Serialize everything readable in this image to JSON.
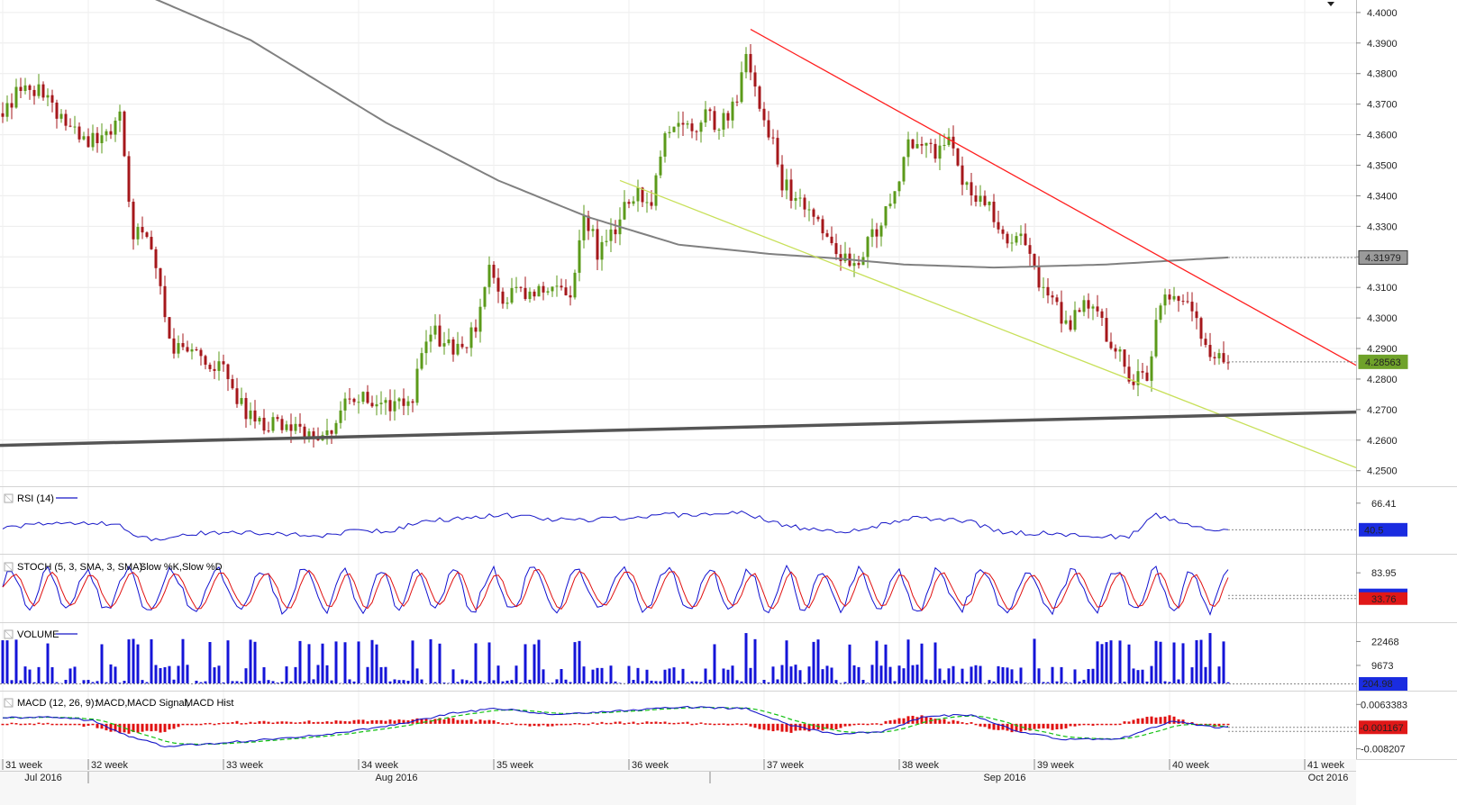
{
  "chart_data": [
    {
      "type": "candlestick",
      "panel": "price",
      "y_ticks": [
        "4.4000",
        "4.3900",
        "4.3800",
        "4.3700",
        "4.3600",
        "4.3500",
        "4.3400",
        "4.3300",
        "4.3200",
        "4.3100",
        "4.3000",
        "4.2900",
        "4.2800",
        "4.2700",
        "4.2600",
        "4.2500"
      ],
      "ylim": [
        4.2455,
        4.4035
      ],
      "colors": {
        "up": "#5b9a1a",
        "down": "#a5171b",
        "ma": "#808080",
        "resistance": "#ff2020",
        "channel": "#c8e05a",
        "support": "#555555"
      },
      "moving_average_label": "4.31979",
      "last_price_label": "4.28563",
      "anchors": [
        {
          "i": 0,
          "v": 4.365
        },
        {
          "i": 5,
          "v": 4.378
        },
        {
          "i": 10,
          "v": 4.372
        },
        {
          "i": 15,
          "v": 4.362
        },
        {
          "i": 20,
          "v": 4.358
        },
        {
          "i": 26,
          "v": 4.365
        },
        {
          "i": 29,
          "v": 4.328
        },
        {
          "i": 33,
          "v": 4.325
        },
        {
          "i": 37,
          "v": 4.292
        },
        {
          "i": 42,
          "v": 4.288
        },
        {
          "i": 48,
          "v": 4.285
        },
        {
          "i": 54,
          "v": 4.268
        },
        {
          "i": 60,
          "v": 4.265
        },
        {
          "i": 66,
          "v": 4.263
        },
        {
          "i": 72,
          "v": 4.262
        },
        {
          "i": 78,
          "v": 4.275
        },
        {
          "i": 82,
          "v": 4.273
        },
        {
          "i": 86,
          "v": 4.272
        },
        {
          "i": 90,
          "v": 4.27
        },
        {
          "i": 95,
          "v": 4.296
        },
        {
          "i": 100,
          "v": 4.29
        },
        {
          "i": 105,
          "v": 4.295
        },
        {
          "i": 108,
          "v": 4.318
        },
        {
          "i": 111,
          "v": 4.306
        },
        {
          "i": 114,
          "v": 4.311
        },
        {
          "i": 117,
          "v": 4.307
        },
        {
          "i": 121,
          "v": 4.31
        },
        {
          "i": 126,
          "v": 4.306
        },
        {
          "i": 129,
          "v": 4.336
        },
        {
          "i": 132,
          "v": 4.322
        },
        {
          "i": 135,
          "v": 4.327
        },
        {
          "i": 138,
          "v": 4.336
        },
        {
          "i": 141,
          "v": 4.341
        },
        {
          "i": 144,
          "v": 4.338
        },
        {
          "i": 147,
          "v": 4.358
        },
        {
          "i": 150,
          "v": 4.366
        },
        {
          "i": 153,
          "v": 4.361
        },
        {
          "i": 156,
          "v": 4.368
        },
        {
          "i": 159,
          "v": 4.362
        },
        {
          "i": 163,
          "v": 4.372
        },
        {
          "i": 165,
          "v": 4.389
        },
        {
          "i": 168,
          "v": 4.371
        },
        {
          "i": 170,
          "v": 4.362
        },
        {
          "i": 173,
          "v": 4.344
        },
        {
          "i": 177,
          "v": 4.338
        },
        {
          "i": 181,
          "v": 4.33
        },
        {
          "i": 185,
          "v": 4.322
        },
        {
          "i": 189,
          "v": 4.318
        },
        {
          "i": 193,
          "v": 4.327
        },
        {
          "i": 197,
          "v": 4.337
        },
        {
          "i": 201,
          "v": 4.356
        },
        {
          "i": 204,
          "v": 4.358
        },
        {
          "i": 207,
          "v": 4.355
        },
        {
          "i": 210,
          "v": 4.357
        },
        {
          "i": 213,
          "v": 4.346
        },
        {
          "i": 216,
          "v": 4.339
        },
        {
          "i": 219,
          "v": 4.336
        },
        {
          "i": 222,
          "v": 4.325
        },
        {
          "i": 225,
          "v": 4.326
        },
        {
          "i": 228,
          "v": 4.323
        },
        {
          "i": 230,
          "v": 4.311
        },
        {
          "i": 233,
          "v": 4.307
        },
        {
          "i": 236,
          "v": 4.297
        },
        {
          "i": 239,
          "v": 4.302
        },
        {
          "i": 242,
          "v": 4.306
        },
        {
          "i": 245,
          "v": 4.294
        },
        {
          "i": 248,
          "v": 4.288
        },
        {
          "i": 251,
          "v": 4.279
        },
        {
          "i": 254,
          "v": 4.282
        },
        {
          "i": 257,
          "v": 4.304
        },
        {
          "i": 260,
          "v": 4.308
        },
        {
          "i": 263,
          "v": 4.304
        },
        {
          "i": 266,
          "v": 4.294
        },
        {
          "i": 269,
          "v": 4.286
        },
        {
          "i": 272,
          "v": 4.285
        }
      ]
    },
    {
      "type": "line",
      "panel": "rsi",
      "title": "RSI (14)",
      "y_ticks": [
        "66.41"
      ],
      "last_label": "40.5",
      "anchors": [
        {
          "i": 0,
          "v": 42
        },
        {
          "i": 8,
          "v": 47
        },
        {
          "i": 16,
          "v": 46
        },
        {
          "i": 25,
          "v": 47
        },
        {
          "i": 30,
          "v": 32
        },
        {
          "i": 36,
          "v": 31
        },
        {
          "i": 40,
          "v": 36
        },
        {
          "i": 48,
          "v": 38
        },
        {
          "i": 60,
          "v": 37
        },
        {
          "i": 70,
          "v": 35
        },
        {
          "i": 78,
          "v": 39
        },
        {
          "i": 86,
          "v": 40
        },
        {
          "i": 95,
          "v": 50
        },
        {
          "i": 105,
          "v": 52
        },
        {
          "i": 110,
          "v": 56
        },
        {
          "i": 118,
          "v": 52
        },
        {
          "i": 126,
          "v": 49
        },
        {
          "i": 135,
          "v": 52
        },
        {
          "i": 145,
          "v": 54
        },
        {
          "i": 155,
          "v": 56
        },
        {
          "i": 165,
          "v": 57
        },
        {
          "i": 172,
          "v": 46
        },
        {
          "i": 180,
          "v": 40
        },
        {
          "i": 190,
          "v": 39
        },
        {
          "i": 200,
          "v": 51
        },
        {
          "i": 208,
          "v": 52
        },
        {
          "i": 215,
          "v": 48
        },
        {
          "i": 222,
          "v": 38
        },
        {
          "i": 230,
          "v": 37
        },
        {
          "i": 240,
          "v": 35
        },
        {
          "i": 250,
          "v": 33
        },
        {
          "i": 256,
          "v": 55
        },
        {
          "i": 262,
          "v": 47
        },
        {
          "i": 268,
          "v": 40
        },
        {
          "i": 272,
          "v": 40.5
        }
      ]
    },
    {
      "type": "line",
      "panel": "stoch",
      "title": "STOCH (5, 3, SMA, 3, SMA):",
      "series": [
        {
          "name": "Slow %K",
          "color": "#1010d0"
        },
        {
          "name": "Slow %D",
          "color": "#e01010"
        }
      ],
      "y_ticks": [
        "83.95"
      ],
      "last_labels": [
        "33.76"
      ],
      "cycle_length": 9,
      "amplitude": 40,
      "center": 50
    },
    {
      "type": "bar",
      "panel": "volume",
      "title": "VOLUME",
      "y_ticks": [
        "22468",
        "9673"
      ],
      "last_label": "204.98",
      "max_value": 28000
    },
    {
      "type": "line",
      "panel": "macd",
      "title": "MACD (12, 26, 9):",
      "series": [
        {
          "name": "MACD",
          "color": "#1010d0"
        },
        {
          "name": "MACD Signal",
          "color": "#10c010"
        },
        {
          "name": "MACD Hist",
          "color": "#e01010"
        }
      ],
      "y_ticks": [
        "0.0063383",
        "-0.008207"
      ],
      "last_label": "-0.001167",
      "anchors": [
        {
          "i": 0,
          "v": 0.0018
        },
        {
          "i": 10,
          "v": 0.0025
        },
        {
          "i": 20,
          "v": 0.001
        },
        {
          "i": 28,
          "v": -0.004
        },
        {
          "i": 36,
          "v": -0.0075
        },
        {
          "i": 46,
          "v": -0.0065
        },
        {
          "i": 60,
          "v": -0.005
        },
        {
          "i": 75,
          "v": -0.003
        },
        {
          "i": 90,
          "v": 0.0005
        },
        {
          "i": 100,
          "v": 0.0035
        },
        {
          "i": 110,
          "v": 0.005
        },
        {
          "i": 122,
          "v": 0.003
        },
        {
          "i": 135,
          "v": 0.004
        },
        {
          "i": 150,
          "v": 0.0055
        },
        {
          "i": 165,
          "v": 0.005
        },
        {
          "i": 175,
          "v": -0.0005
        },
        {
          "i": 185,
          "v": -0.0035
        },
        {
          "i": 195,
          "v": -0.0025
        },
        {
          "i": 205,
          "v": 0.0025
        },
        {
          "i": 215,
          "v": 0.003
        },
        {
          "i": 225,
          "v": -0.0025
        },
        {
          "i": 235,
          "v": -0.005
        },
        {
          "i": 248,
          "v": -0.005
        },
        {
          "i": 260,
          "v": 0.001
        },
        {
          "i": 268,
          "v": -0.001
        },
        {
          "i": 272,
          "v": -0.0012
        }
      ]
    }
  ],
  "x_axis": {
    "weeks": [
      "31 week",
      "32 week",
      "33 week",
      "34 week",
      "35 week",
      "36 week",
      "37 week",
      "38 week",
      "39 week",
      "40 week",
      "41 week"
    ],
    "months": [
      "Jul 2016",
      "Aug 2016",
      "Sep 2016",
      "Oct 2016"
    ]
  }
}
